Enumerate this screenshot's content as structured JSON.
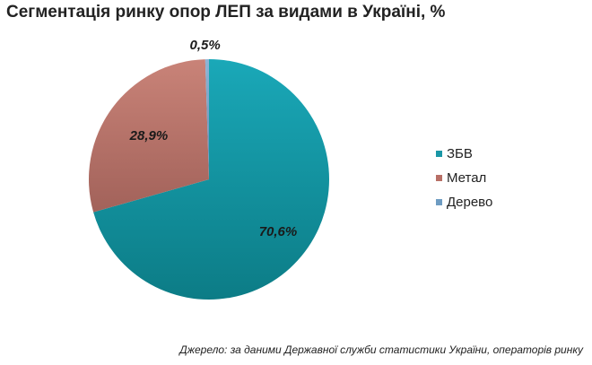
{
  "chart_data": {
    "type": "pie",
    "title": "Сегментація ринку опор ЛЕП за видами в Україні, %",
    "categories": [
      "ЗБВ",
      "Метал",
      "Дерево"
    ],
    "values": [
      70.6,
      28.9,
      0.5
    ],
    "value_labels": [
      "70,6%",
      "28,9%",
      "0,5%"
    ],
    "colors": [
      "#1a97a6",
      "#b86f66",
      "#6e9cc2"
    ],
    "legend_position": "right"
  },
  "source_note": "Джерело: за даними Державної служби статистики України, операторів ринку"
}
